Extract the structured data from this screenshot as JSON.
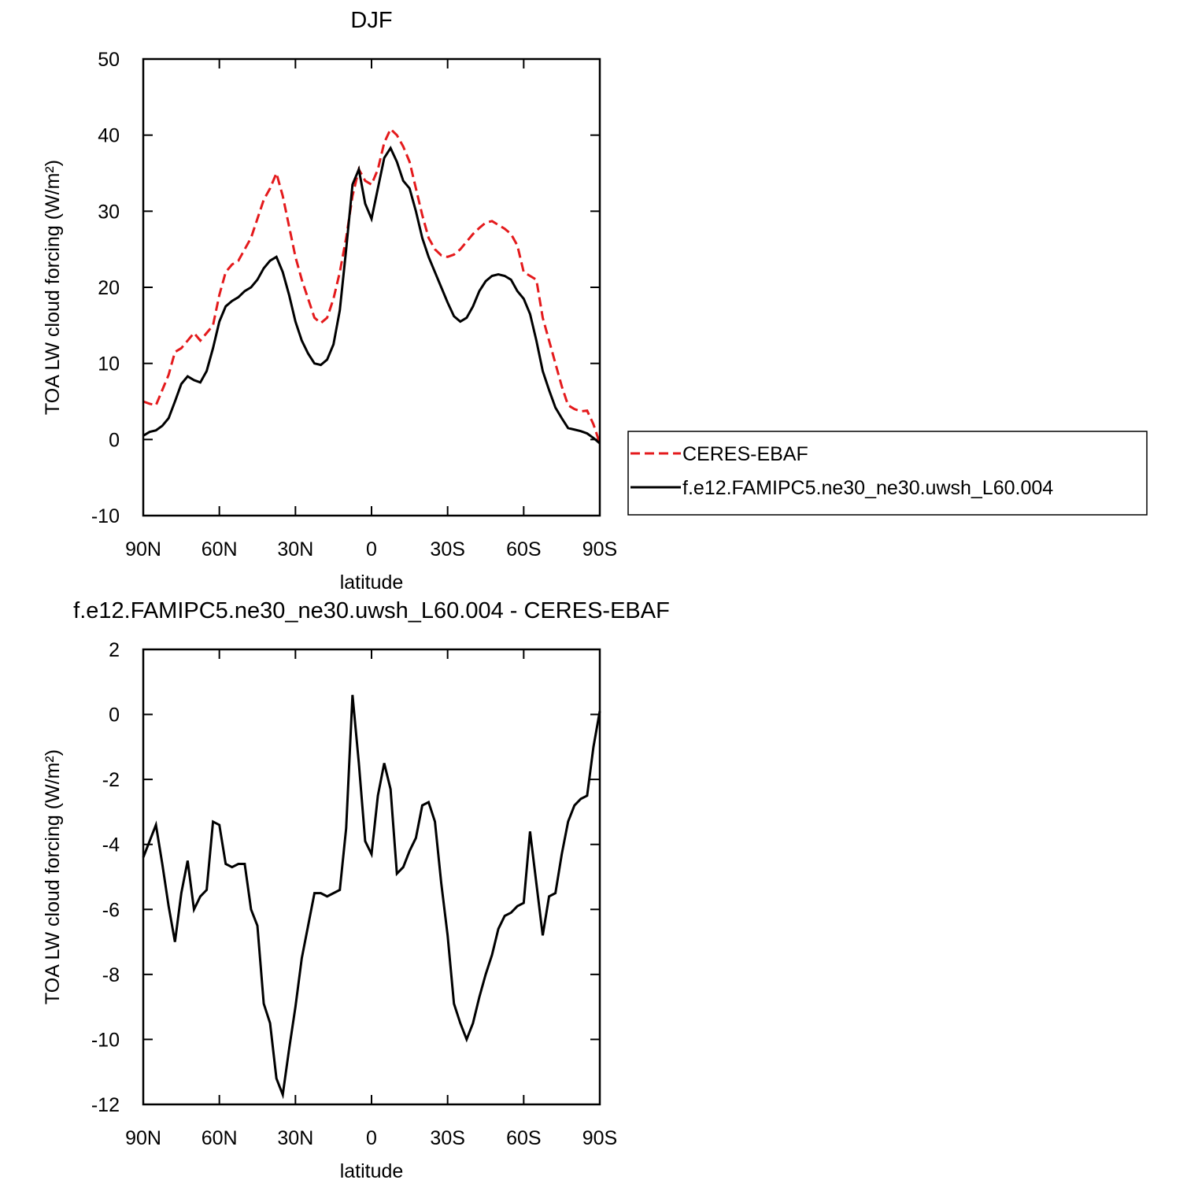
{
  "chart_data": [
    {
      "type": "line",
      "title": "DJF",
      "x_label": "latitude",
      "y_label": "TOA LW cloud forcing (W/m²)",
      "x": [
        90,
        87.5,
        85,
        82.5,
        80,
        77.5,
        75,
        72.5,
        70,
        67.5,
        65,
        62.5,
        60,
        57.5,
        55,
        52.5,
        50,
        47.5,
        45,
        42.5,
        40,
        37.5,
        35,
        32.5,
        30,
        27.5,
        25,
        22.5,
        20,
        17.5,
        15,
        12.5,
        10,
        7.5,
        5,
        2.5,
        0,
        -2.5,
        -5,
        -7.5,
        -10,
        -12.5,
        -15,
        -17.5,
        -20,
        -22.5,
        -25,
        -27.5,
        -30,
        -32.5,
        -35,
        -37.5,
        -40,
        -42.5,
        -45,
        -47.5,
        -50,
        -52.5,
        -55,
        -57.5,
        -60,
        -62.5,
        -65,
        -67.5,
        -70,
        -72.5,
        -75,
        -77.5,
        -80,
        -82.5,
        -85,
        -87.5,
        -90
      ],
      "series": [
        {
          "name": "CERES-EBAF",
          "color": "#e41a1c",
          "line_style": "dashed",
          "values": [
            5,
            4.7,
            4.5,
            6.5,
            8.5,
            11.5,
            12,
            13,
            14,
            13,
            14,
            15,
            19,
            22,
            23,
            23.5,
            25,
            26.5,
            29,
            31.5,
            33,
            35,
            32,
            28,
            24,
            21,
            18.5,
            16,
            15.3,
            16,
            18.5,
            22,
            26.5,
            32,
            35.5,
            34,
            33.5,
            35.5,
            39,
            40.8,
            40,
            38.5,
            36.5,
            33,
            29.5,
            26.5,
            25,
            24.2,
            24,
            24.3,
            25,
            26,
            27,
            27.8,
            28.5,
            28.7,
            28.2,
            27.7,
            27,
            25.5,
            22,
            21.5,
            21,
            16,
            13,
            10,
            7,
            4.5,
            4,
            3.7,
            3.8,
            2,
            -0.5
          ]
        },
        {
          "name": "f.e12.FAMIPC5.ne30_ne30.uwsh_L60.004",
          "color": "#000000",
          "line_style": "solid",
          "values": [
            0.5,
            1,
            1.2,
            1.8,
            2.8,
            5,
            7.3,
            8.3,
            7.8,
            7.5,
            9,
            12,
            15.5,
            17.5,
            18.2,
            18.7,
            19.5,
            20,
            21,
            22.5,
            23.5,
            24,
            22,
            19,
            15.5,
            13,
            11.3,
            10,
            9.8,
            10.5,
            12.5,
            17,
            25,
            33.5,
            35.5,
            31,
            29,
            33,
            37,
            38.3,
            36.5,
            34,
            33,
            30,
            26.5,
            24,
            22,
            20,
            18,
            16.2,
            15.5,
            16,
            17.5,
            19.5,
            20.8,
            21.5,
            21.7,
            21.5,
            21,
            19.5,
            18.5,
            16.5,
            13,
            9,
            6.5,
            4.2,
            2.8,
            1.5,
            1.3,
            1.1,
            0.8,
            0.2,
            -0.5
          ]
        }
      ],
      "xlim": [
        90,
        -90
      ],
      "xticks": [
        {
          "value": 90,
          "label": "90N"
        },
        {
          "value": 60,
          "label": "60N"
        },
        {
          "value": 30,
          "label": "30N"
        },
        0,
        {
          "value": -30,
          "label": "30S"
        },
        {
          "value": -60,
          "label": "60S"
        },
        {
          "value": -90,
          "label": "90S"
        }
      ],
      "ylim": [
        -10,
        50
      ],
      "yticks": [
        -10,
        0,
        10,
        20,
        30,
        40,
        50
      ]
    },
    {
      "type": "line",
      "title": "f.e12.FAMIPC5.ne30_ne30.uwsh_L60.004 - CERES-EBAF",
      "x_label": "latitude",
      "y_label": "TOA LW cloud forcing (W/m²)",
      "x": [
        90,
        87.5,
        85,
        82.5,
        80,
        77.5,
        75,
        72.5,
        70,
        67.5,
        65,
        62.5,
        60,
        57.5,
        55,
        52.5,
        50,
        47.5,
        45,
        42.5,
        40,
        37.5,
        35,
        32.5,
        30,
        27.5,
        25,
        22.5,
        20,
        17.5,
        15,
        12.5,
        10,
        7.5,
        5,
        2.5,
        0,
        -2.5,
        -5,
        -7.5,
        -10,
        -12.5,
        -15,
        -17.5,
        -20,
        -22.5,
        -25,
        -27.5,
        -30,
        -32.5,
        -35,
        -37.5,
        -40,
        -42.5,
        -45,
        -47.5,
        -50,
        -52.5,
        -55,
        -57.5,
        -60,
        -62.5,
        -65,
        -67.5,
        -70,
        -72.5,
        -75,
        -77.5,
        -80,
        -82.5,
        -85,
        -87.5,
        -90
      ],
      "values": [
        -4.4,
        -3.9,
        -3.4,
        -4.6,
        -5.9,
        -7,
        -5.5,
        -4.5,
        -6,
        -5.6,
        -5.4,
        -3.3,
        -3.4,
        -4.6,
        -4.7,
        -4.6,
        -4.6,
        -6,
        -6.5,
        -8.9,
        -9.5,
        -11.2,
        -11.7,
        -10.3,
        -9,
        -7.5,
        -6.5,
        -5.5,
        -5.5,
        -5.6,
        -5.5,
        -5.4,
        -3.5,
        0.6,
        -1.5,
        -3.9,
        -4.3,
        -2.5,
        -1.5,
        -2.3,
        -4.9,
        -4.7,
        -4.2,
        -3.8,
        -2.8,
        -2.7,
        -3.3,
        -5.2,
        -6.8,
        -8.9,
        -9.5,
        -10,
        -9.5,
        -8.7,
        -8,
        -7.4,
        -6.6,
        -6.2,
        -6.1,
        -5.9,
        -5.8,
        -3.6,
        -5.2,
        -6.8,
        -5.6,
        -5.5,
        -4.3,
        -3.3,
        -2.8,
        -2.6,
        -2.5,
        -1,
        0.1
      ],
      "color": "#000000",
      "line_style": "solid",
      "xlim": [
        90,
        -90
      ],
      "xticks": [
        {
          "value": 90,
          "label": "90N"
        },
        {
          "value": 60,
          "label": "60N"
        },
        {
          "value": 30,
          "label": "30N"
        },
        0,
        {
          "value": -30,
          "label": "30S"
        },
        {
          "value": -60,
          "label": "60S"
        },
        {
          "value": -90,
          "label": "90S"
        }
      ],
      "ylim": [
        -12,
        2
      ],
      "yticks": [
        -12,
        -10,
        -8,
        -6,
        -4,
        -2,
        0,
        2
      ]
    }
  ]
}
